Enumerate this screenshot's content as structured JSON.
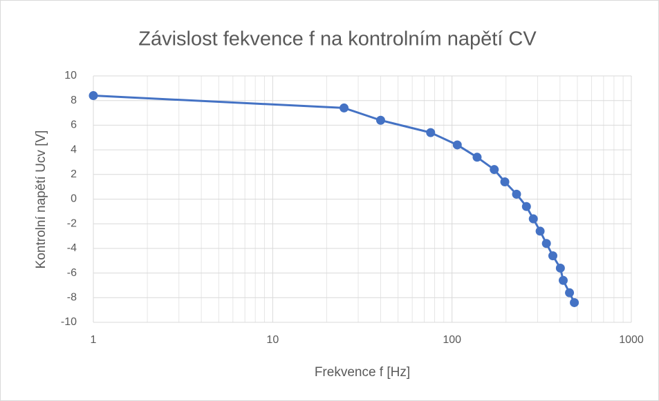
{
  "chart_data": {
    "type": "line",
    "title": "Závislost fekvence f na kontrolním napětí CV",
    "x_label": "Frekvence f [Hz]",
    "y_label": "Kontrolní napětí Ucv [V]",
    "x": [
      1,
      25,
      40,
      76,
      107,
      138,
      172,
      197,
      229,
      260,
      284,
      310,
      336,
      365,
      402,
      417,
      452,
      481
    ],
    "series": [
      {
        "name": "Ucv",
        "color": "#4472c4",
        "values": [
          8.4,
          7.4,
          6.4,
          5.4,
          4.4,
          3.4,
          2.4,
          1.4,
          0.4,
          -0.6,
          -1.6,
          -2.6,
          -3.6,
          -4.6,
          -5.6,
          -6.6,
          -7.6,
          -8.4
        ]
      }
    ],
    "xlim": [
      1,
      1000
    ],
    "xticks": [
      1,
      10,
      100,
      1000
    ],
    "xlog": true,
    "ylim": [
      -10,
      10
    ],
    "yticks": [
      -10,
      -8,
      -6,
      -4,
      -2,
      0,
      2,
      4,
      6,
      8,
      10
    ],
    "grid": true,
    "minor_grid": true
  }
}
